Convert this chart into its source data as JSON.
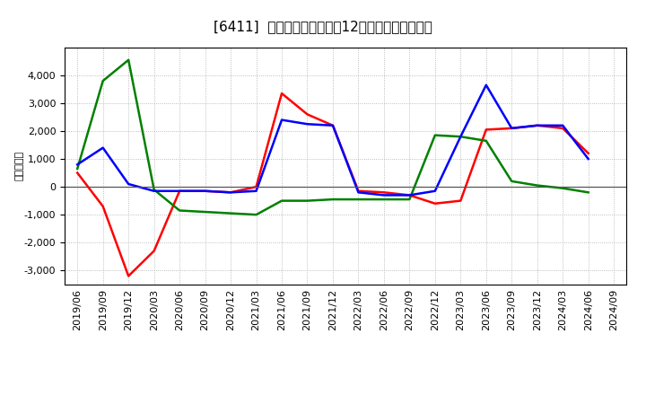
{
  "title": "[6411]  キャッシュフローの12か月移動合計の推移",
  "ylabel": "（百万円）",
  "ylim": [
    -3500,
    5000
  ],
  "yticks": [
    -3000,
    -2000,
    -1000,
    0,
    1000,
    2000,
    3000,
    4000
  ],
  "dates": [
    "2019/06",
    "2019/09",
    "2019/12",
    "2020/03",
    "2020/06",
    "2020/09",
    "2020/12",
    "2021/03",
    "2021/06",
    "2021/09",
    "2021/12",
    "2022/03",
    "2022/06",
    "2022/09",
    "2022/12",
    "2023/03",
    "2023/06",
    "2023/09",
    "2023/12",
    "2024/03",
    "2024/06",
    "2024/09"
  ],
  "operating_cf": [
    500,
    -700,
    -3200,
    -2300,
    -150,
    -150,
    -200,
    0,
    3350,
    2600,
    2200,
    -150,
    -200,
    -300,
    -600,
    -500,
    2050,
    2100,
    2200,
    2100,
    1200,
    null
  ],
  "investing_cf": [
    650,
    3800,
    4550,
    -100,
    -850,
    -900,
    -950,
    -1000,
    -500,
    -500,
    -450,
    -450,
    -450,
    -450,
    1850,
    1800,
    1650,
    200,
    50,
    -50,
    -200,
    null
  ],
  "free_cf": [
    800,
    1400,
    100,
    -150,
    -150,
    -150,
    -200,
    -150,
    2400,
    2250,
    2200,
    -200,
    -300,
    -300,
    -150,
    1800,
    3650,
    2100,
    2200,
    2200,
    1000,
    null
  ],
  "operating_color": "#ff0000",
  "investing_color": "#008000",
  "free_cf_color": "#0000ff",
  "background_color": "#ffffff",
  "plot_bg_color": "#ffffff",
  "grid_color": "#aaaaaa",
  "line_width": 1.8,
  "title_fontsize": 11,
  "legend_fontsize": 9,
  "tick_fontsize": 8,
  "ylabel_fontsize": 8
}
